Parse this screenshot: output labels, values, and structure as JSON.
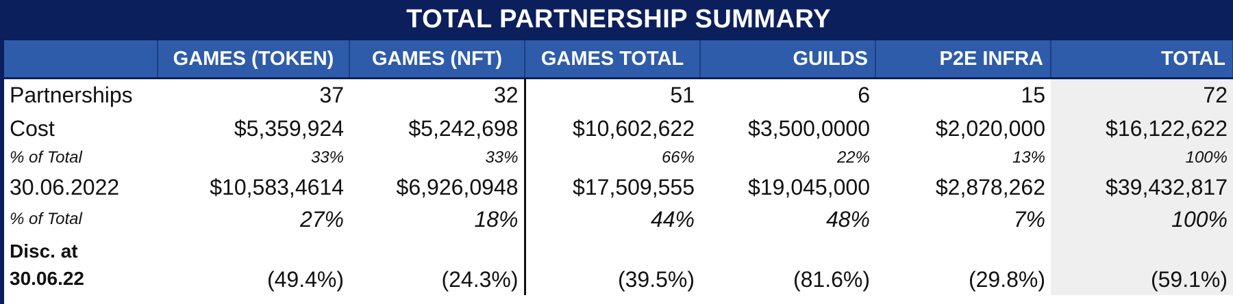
{
  "title": "TOTAL PARTNERSHIP SUMMARY",
  "headers": [
    "",
    "GAMES (TOKEN)",
    "GAMES (NFT)",
    "GAMES TOTAL",
    "GUILDS",
    "P2E INFRA",
    "TOTAL"
  ],
  "rows": [
    {
      "label": "Partnerships",
      "values": [
        "37",
        "32",
        "51",
        "6",
        "15",
        "72"
      ]
    },
    {
      "label": "Cost",
      "values": [
        "$5,359,924",
        "$5,242,698",
        "$10,602,622",
        "$3,500,0000",
        "$2,020,000",
        "$16,122,622"
      ]
    },
    {
      "label": "% of Total",
      "values": [
        "33%",
        "33%",
        "66%",
        "22%",
        "13%",
        "100%"
      ]
    },
    {
      "label": "30.06.2022",
      "values": [
        "$10,583,4614",
        "$6,926,0948",
        "$17,509,555",
        "$19,045,000",
        "$2,878,262",
        "$39,432,817"
      ]
    },
    {
      "label": "% of Total",
      "values": [
        "27%",
        "18%",
        "44%",
        "48%",
        "7%",
        "100%"
      ]
    },
    {
      "label": "Disc. at 30.06.22",
      "values": [
        "(49.4%)",
        "(24.3%)",
        "(39.5%)",
        "(81.6%)",
        "(29.8%)",
        "(59.1%)"
      ]
    }
  ],
  "colors": {
    "title_bg": "#0b1f5c",
    "header_bg": "#2e5caa",
    "total_col_bg": "#efefef"
  }
}
